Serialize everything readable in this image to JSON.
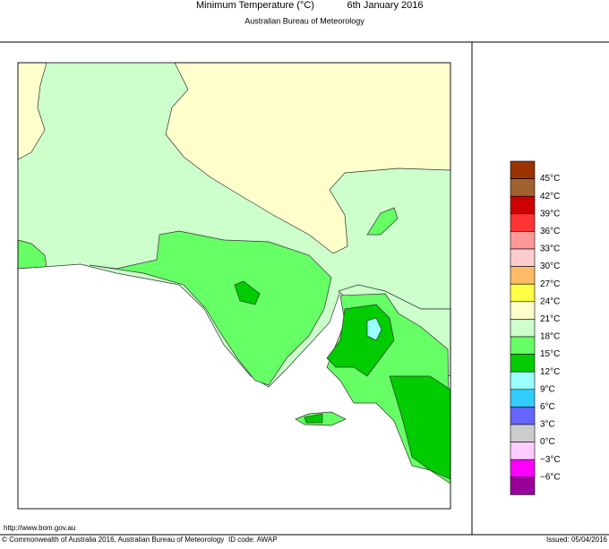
{
  "header": {
    "title": "Minimum Temperature (°C)",
    "date": "6th January 2016",
    "subtitle": "Australian Bureau of Meteorology"
  },
  "legend": {
    "colors": [
      "#993300",
      "#a0622f",
      "#cc0000",
      "#ff3333",
      "#ff9999",
      "#ffcccc",
      "#ffbb66",
      "#ffff44",
      "#ffffcc",
      "#ccffcc",
      "#66ff66",
      "#00cc00",
      "#99ffff",
      "#33ccff",
      "#6666ff",
      "#cccccc",
      "#ffccff",
      "#ff00ff",
      "#990099"
    ],
    "labels": [
      "45°C",
      "42°C",
      "39°C",
      "36°C",
      "33°C",
      "30°C",
      "27°C",
      "24°C",
      "21°C",
      "18°C",
      "15°C",
      "12°C",
      "9°C",
      "6°C",
      "3°C",
      "0°C",
      "−3°C",
      "−6°C"
    ]
  },
  "footer": {
    "url": "http://www.bom.gov.au",
    "copyright": "© Commonwealth of Australia 2016, Australian Bureau of Meteorology",
    "id_code": "ID code: AWAP",
    "issued": "Issued: 05/04/2016"
  }
}
